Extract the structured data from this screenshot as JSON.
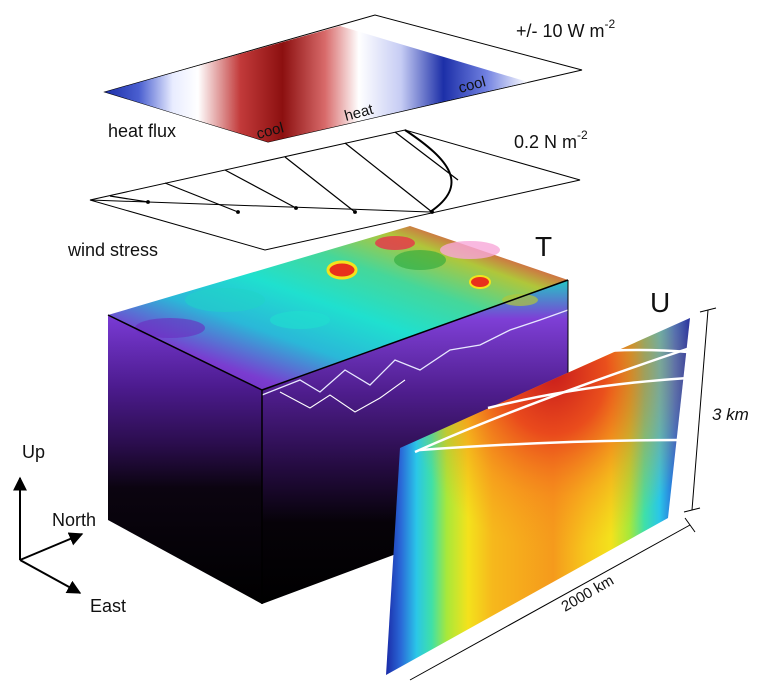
{
  "heat_flux": {
    "label": "heat flux",
    "scale": "+/- 10 W m",
    "scale_exp": "-2",
    "band_cool_1": "cool",
    "band_heat": "heat",
    "band_cool_2": "cool"
  },
  "wind_stress": {
    "label": "wind stress",
    "scale": "0.2 N m",
    "scale_exp": "-2"
  },
  "box": {
    "temp_label": "T"
  },
  "section": {
    "velocity_label": "U",
    "depth_label": "3 km",
    "width_label": "2000 km"
  },
  "axes": {
    "up": "Up",
    "north": "North",
    "east": "East"
  },
  "colors": {
    "warm": "#d7301f",
    "cool": "#1f3fb4",
    "teal": "#1fd3c6",
    "purple_dark": "#3a1060",
    "yellow": "#f4e21c",
    "orange": "#f59a1c"
  }
}
